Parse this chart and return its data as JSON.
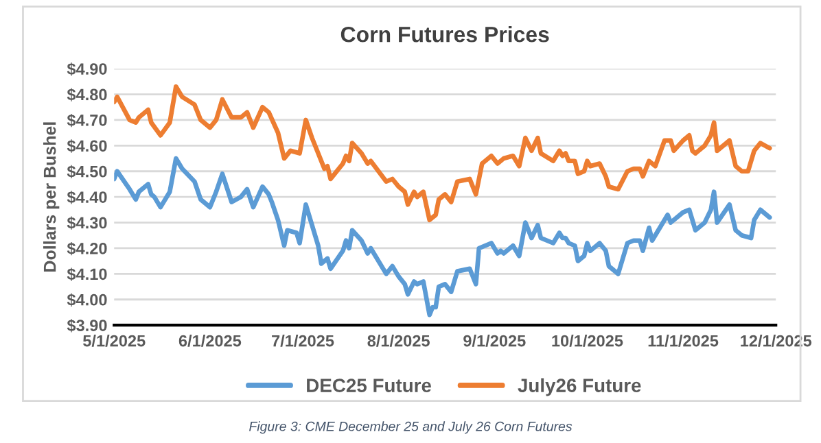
{
  "chart_data": {
    "type": "line",
    "title": "Corn Futures Prices",
    "ylabel": "Dollars per Bushel",
    "annotations": [
      "Figure 3: CME December 25 and July 26 Corn Futures"
    ],
    "ylim": [
      3.9,
      4.9
    ],
    "yticks": [
      {
        "value": 3.9,
        "label": "$3.90"
      },
      {
        "value": 4.0,
        "label": "$4.00"
      },
      {
        "value": 4.1,
        "label": "$4.10"
      },
      {
        "value": 4.2,
        "label": "$4.20"
      },
      {
        "value": 4.3,
        "label": "$4.30"
      },
      {
        "value": 4.4,
        "label": "$4.40"
      },
      {
        "value": 4.5,
        "label": "$4.50"
      },
      {
        "value": 4.6,
        "label": "$4.60"
      },
      {
        "value": 4.7,
        "label": "$4.70"
      },
      {
        "value": 4.8,
        "label": "$4.80"
      },
      {
        "value": 4.9,
        "label": "$4.90"
      }
    ],
    "xlim": [
      "2025-05-01",
      "2025-12-01"
    ],
    "xticks": [
      {
        "value": "2025-05-01",
        "label": "5/1/2025"
      },
      {
        "value": "2025-06-01",
        "label": "6/1/2025"
      },
      {
        "value": "2025-07-01",
        "label": "7/1/2025"
      },
      {
        "value": "2025-08-01",
        "label": "8/1/2025"
      },
      {
        "value": "2025-09-01",
        "label": "9/1/2025"
      },
      {
        "value": "2025-10-01",
        "label": "10/1/2025"
      },
      {
        "value": "2025-11-01",
        "label": "11/1/2025"
      },
      {
        "value": "2025-12-01",
        "label": "12/1/2025"
      }
    ],
    "grid": "y",
    "legend": "bottom",
    "marker": "none",
    "line_style": "solid",
    "series": [
      {
        "name": "DEC25 Future",
        "color": "#5b9bd5",
        "x": [
          "2025-05-01",
          "2025-05-02",
          "2025-05-06",
          "2025-05-08",
          "2025-05-09",
          "2025-05-12",
          "2025-05-13",
          "2025-05-14",
          "2025-05-16",
          "2025-05-19",
          "2025-05-21",
          "2025-05-23",
          "2025-05-27",
          "2025-05-29",
          "2025-06-01",
          "2025-06-03",
          "2025-06-05",
          "2025-06-08",
          "2025-06-11",
          "2025-06-13",
          "2025-06-15",
          "2025-06-18",
          "2025-06-20",
          "2025-06-21",
          "2025-06-23",
          "2025-06-25",
          "2025-06-26",
          "2025-06-29",
          "2025-06-30",
          "2025-07-02",
          "2025-07-04",
          "2025-07-06",
          "2025-07-07",
          "2025-07-09",
          "2025-07-10",
          "2025-07-14",
          "2025-07-15",
          "2025-07-16",
          "2025-07-17",
          "2025-07-20",
          "2025-07-22",
          "2025-07-23",
          "2025-07-28",
          "2025-07-30",
          "2025-08-01",
          "2025-08-03",
          "2025-08-04",
          "2025-08-06",
          "2025-08-07",
          "2025-08-09",
          "2025-08-11",
          "2025-08-12",
          "2025-08-13",
          "2025-08-14",
          "2025-08-16",
          "2025-08-18",
          "2025-08-20",
          "2025-08-24",
          "2025-08-26",
          "2025-08-27",
          "2025-08-31",
          "2025-09-02",
          "2025-09-03",
          "2025-09-04",
          "2025-09-07",
          "2025-09-09",
          "2025-09-11",
          "2025-09-13",
          "2025-09-15",
          "2025-09-16",
          "2025-09-20",
          "2025-09-22",
          "2025-09-23",
          "2025-09-24",
          "2025-09-25",
          "2025-09-27",
          "2025-09-28",
          "2025-09-30",
          "2025-10-01",
          "2025-10-02",
          "2025-10-05",
          "2025-10-07",
          "2025-10-08",
          "2025-10-11",
          "2025-10-14",
          "2025-10-16",
          "2025-10-18",
          "2025-10-19",
          "2025-10-21",
          "2025-10-22",
          "2025-10-26",
          "2025-10-27",
          "2025-10-28",
          "2025-11-01",
          "2025-11-03",
          "2025-11-04",
          "2025-11-05",
          "2025-11-08",
          "2025-11-10",
          "2025-11-11",
          "2025-11-12",
          "2025-11-16",
          "2025-11-18",
          "2025-11-20",
          "2025-11-23",
          "2025-11-24",
          "2025-11-26",
          "2025-11-29"
        ],
        "values": [
          4.47,
          4.5,
          4.43,
          4.39,
          4.42,
          4.45,
          4.41,
          4.4,
          4.36,
          4.42,
          4.55,
          4.51,
          4.46,
          4.39,
          4.36,
          4.42,
          4.49,
          4.38,
          4.4,
          4.43,
          4.36,
          4.44,
          4.41,
          4.38,
          4.31,
          4.21,
          4.27,
          4.26,
          4.22,
          4.37,
          4.29,
          4.21,
          4.14,
          4.16,
          4.12,
          4.19,
          4.23,
          4.2,
          4.27,
          4.23,
          4.18,
          4.2,
          4.1,
          4.13,
          4.09,
          4.06,
          4.02,
          4.07,
          4.06,
          4.07,
          3.94,
          3.97,
          3.97,
          4.05,
          4.06,
          4.03,
          4.11,
          4.12,
          4.06,
          4.2,
          4.22,
          4.18,
          4.19,
          4.18,
          4.21,
          4.17,
          4.3,
          4.24,
          4.29,
          4.24,
          4.22,
          4.26,
          4.24,
          4.24,
          4.22,
          4.21,
          4.15,
          4.17,
          4.22,
          4.19,
          4.22,
          4.19,
          4.13,
          4.1,
          4.22,
          4.23,
          4.23,
          4.19,
          4.28,
          4.23,
          4.31,
          4.33,
          4.3,
          4.34,
          4.35,
          4.31,
          4.27,
          4.3,
          4.35,
          4.42,
          4.3,
          4.37,
          4.27,
          4.25,
          4.24,
          4.31,
          4.35,
          4.32
        ]
      },
      {
        "name": "July26 Future",
        "color": "#ed7d31",
        "x": [
          "2025-05-01",
          "2025-05-02",
          "2025-05-06",
          "2025-05-08",
          "2025-05-09",
          "2025-05-12",
          "2025-05-13",
          "2025-05-16",
          "2025-05-19",
          "2025-05-21",
          "2025-05-23",
          "2025-05-27",
          "2025-05-29",
          "2025-06-01",
          "2025-06-03",
          "2025-06-05",
          "2025-06-08",
          "2025-06-11",
          "2025-06-13",
          "2025-06-15",
          "2025-06-18",
          "2025-06-20",
          "2025-06-23",
          "2025-06-25",
          "2025-06-27",
          "2025-06-30",
          "2025-07-02",
          "2025-07-04",
          "2025-07-08",
          "2025-07-09",
          "2025-07-10",
          "2025-07-14",
          "2025-07-15",
          "2025-07-16",
          "2025-07-17",
          "2025-07-20",
          "2025-07-22",
          "2025-07-23",
          "2025-07-28",
          "2025-07-30",
          "2025-08-01",
          "2025-08-03",
          "2025-08-04",
          "2025-08-06",
          "2025-08-07",
          "2025-08-09",
          "2025-08-11",
          "2025-08-13",
          "2025-08-14",
          "2025-08-16",
          "2025-08-18",
          "2025-08-20",
          "2025-08-24",
          "2025-08-26",
          "2025-08-28",
          "2025-08-31",
          "2025-09-02",
          "2025-09-04",
          "2025-09-07",
          "2025-09-09",
          "2025-09-11",
          "2025-09-13",
          "2025-09-15",
          "2025-09-16",
          "2025-09-20",
          "2025-09-22",
          "2025-09-23",
          "2025-09-24",
          "2025-09-25",
          "2025-09-27",
          "2025-09-28",
          "2025-09-30",
          "2025-10-01",
          "2025-10-02",
          "2025-10-05",
          "2025-10-07",
          "2025-10-08",
          "2025-10-11",
          "2025-10-14",
          "2025-10-16",
          "2025-10-18",
          "2025-10-19",
          "2025-10-21",
          "2025-10-23",
          "2025-10-26",
          "2025-10-28",
          "2025-10-29",
          "2025-11-01",
          "2025-11-03",
          "2025-11-04",
          "2025-11-05",
          "2025-11-08",
          "2025-11-10",
          "2025-11-11",
          "2025-11-12",
          "2025-11-16",
          "2025-11-18",
          "2025-11-20",
          "2025-11-22",
          "2025-11-24",
          "2025-11-26",
          "2025-11-29"
        ],
        "values": [
          4.77,
          4.79,
          4.7,
          4.69,
          4.71,
          4.74,
          4.69,
          4.64,
          4.69,
          4.83,
          4.79,
          4.76,
          4.7,
          4.67,
          4.7,
          4.78,
          4.71,
          4.71,
          4.73,
          4.67,
          4.75,
          4.73,
          4.65,
          4.55,
          4.58,
          4.57,
          4.7,
          4.63,
          4.51,
          4.52,
          4.47,
          4.53,
          4.56,
          4.54,
          4.61,
          4.57,
          4.53,
          4.54,
          4.46,
          4.47,
          4.44,
          4.42,
          4.37,
          4.42,
          4.4,
          4.42,
          4.31,
          4.33,
          4.39,
          4.41,
          4.38,
          4.46,
          4.47,
          4.41,
          4.53,
          4.56,
          4.53,
          4.55,
          4.56,
          4.52,
          4.63,
          4.58,
          4.63,
          4.57,
          4.54,
          4.58,
          4.56,
          4.57,
          4.54,
          4.54,
          4.49,
          4.5,
          4.54,
          4.52,
          4.53,
          4.48,
          4.44,
          4.43,
          4.5,
          4.51,
          4.51,
          4.48,
          4.54,
          4.52,
          4.62,
          4.62,
          4.58,
          4.62,
          4.64,
          4.58,
          4.57,
          4.6,
          4.64,
          4.69,
          4.58,
          4.62,
          4.52,
          4.5,
          4.5,
          4.58,
          4.61,
          4.59
        ]
      }
    ]
  }
}
